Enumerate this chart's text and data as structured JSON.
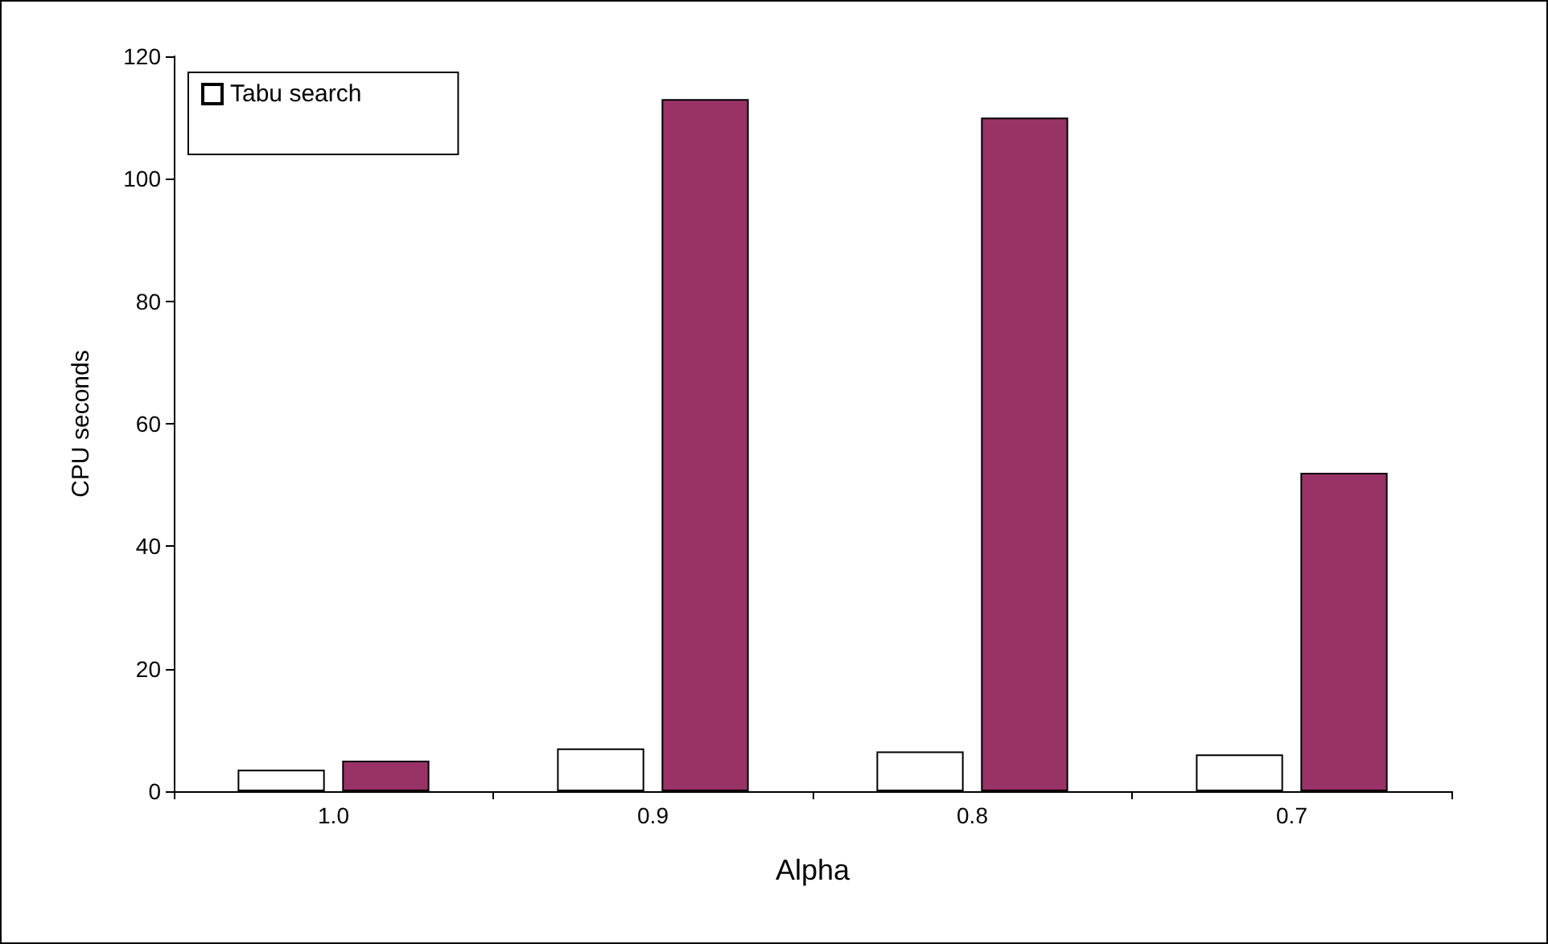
{
  "chart_data": {
    "type": "bar",
    "xlabel": "Alpha",
    "ylabel": "CPU seconds",
    "categories": [
      "1.0",
      "0.9",
      "0.8",
      "0.7"
    ],
    "series": [
      {
        "name": "Tabu search",
        "color": "#ffffff",
        "values": [
          3.5,
          7,
          6.5,
          6
        ]
      },
      {
        "color": "#993366",
        "values": [
          5,
          113,
          110,
          52
        ]
      }
    ],
    "ylim": [
      0,
      120
    ],
    "yticks": [
      0,
      20,
      40,
      60,
      80,
      100,
      120
    ],
    "grid": false,
    "legend": "top left"
  }
}
